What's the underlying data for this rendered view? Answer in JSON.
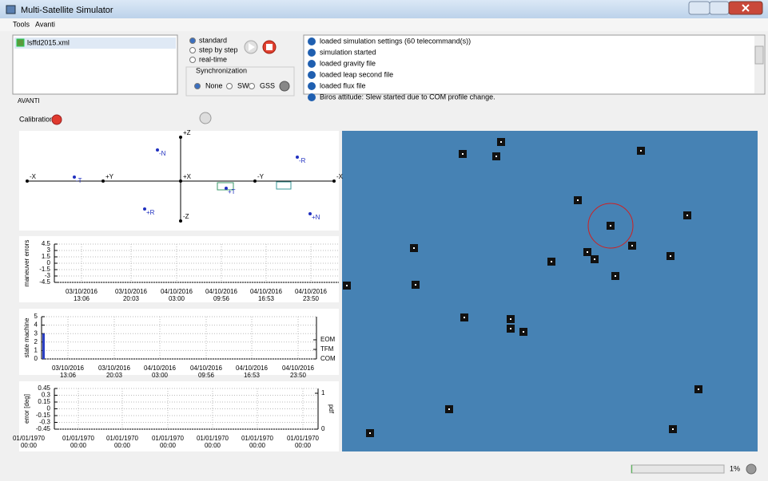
{
  "window": {
    "title": "Multi-Satellite Simulator"
  },
  "menu": [
    "Tools",
    "Avanti"
  ],
  "files": [
    "lsffd2015.xml"
  ],
  "modes": [
    "standard",
    "step by step",
    "real-time"
  ],
  "synchronization": {
    "title": "Synchronization",
    "options": [
      "None",
      "SW",
      "GSS"
    ]
  },
  "log": [
    "loaded simulation settings (60 telecommand(s))",
    "simulation started",
    "loaded gravity file",
    "loaded leap second file",
    "loaded flux file",
    "Biros attitude: Slew started due to  COM profile change."
  ],
  "section": "AVANTI",
  "calibration": "Calibration",
  "attitude": {
    "axes": [
      "-X",
      "+Y",
      "+X",
      "-Y",
      "-X",
      "+Z",
      "-Z"
    ],
    "points": [
      "-N",
      "-R",
      "-T",
      "+T",
      "+R",
      "+N"
    ]
  },
  "plots": [
    {
      "ylabel": "maneuver errors",
      "ylim": [
        -4.5,
        4.5
      ],
      "yticks": [
        4.5,
        3,
        1.5,
        0,
        -1.5,
        -3,
        -4.5
      ],
      "xticks": [
        {
          "date": "03/10/2016",
          "time": "13:06"
        },
        {
          "date": "03/10/2016",
          "time": "20:03"
        },
        {
          "date": "04/10/2016",
          "time": "03:00"
        },
        {
          "date": "04/10/2016",
          "time": "09:56"
        },
        {
          "date": "04/10/2016",
          "time": "16:53"
        },
        {
          "date": "04/10/2016",
          "time": "23:50"
        }
      ]
    },
    {
      "ylabel": "state machine",
      "ylim": [
        0,
        5
      ],
      "yticks": [
        5,
        4,
        3,
        2,
        1,
        0
      ],
      "values": [
        3
      ],
      "color": "#2b3fc4",
      "y2labels": [
        "EOM",
        "TFM",
        "COM"
      ],
      "xticks": [
        {
          "date": "03/10/2016",
          "time": "13:06"
        },
        {
          "date": "03/10/2016",
          "time": "20:03"
        },
        {
          "date": "04/10/2016",
          "time": "03:00"
        },
        {
          "date": "04/10/2016",
          "time": "09:56"
        },
        {
          "date": "04/10/2016",
          "time": "16:53"
        },
        {
          "date": "04/10/2016",
          "time": "23:50"
        }
      ]
    },
    {
      "ylabel": "error [deg]",
      "ylim": [
        -0.45,
        0.45
      ],
      "yticks": [
        0.45,
        0.3,
        0.15,
        0,
        -0.15,
        -0.3,
        -0.45
      ],
      "y2label": "pdf",
      "y2lim": [
        0,
        1
      ],
      "y2ticks": [
        1,
        0
      ],
      "xticks": [
        {
          "date": "01/01/1970",
          "time": "00:00"
        },
        {
          "date": "01/01/1970",
          "time": "00:00"
        },
        {
          "date": "01/01/1970",
          "time": "00:00"
        },
        {
          "date": "01/01/1970",
          "time": "00:00"
        },
        {
          "date": "01/01/1970",
          "time": "00:00"
        },
        {
          "date": "01/01/1970",
          "time": "00:00"
        },
        {
          "date": "01/01/1970",
          "time": "00:00"
        }
      ]
    }
  ],
  "status": {
    "progress": 1,
    "progress_label": "1%"
  }
}
